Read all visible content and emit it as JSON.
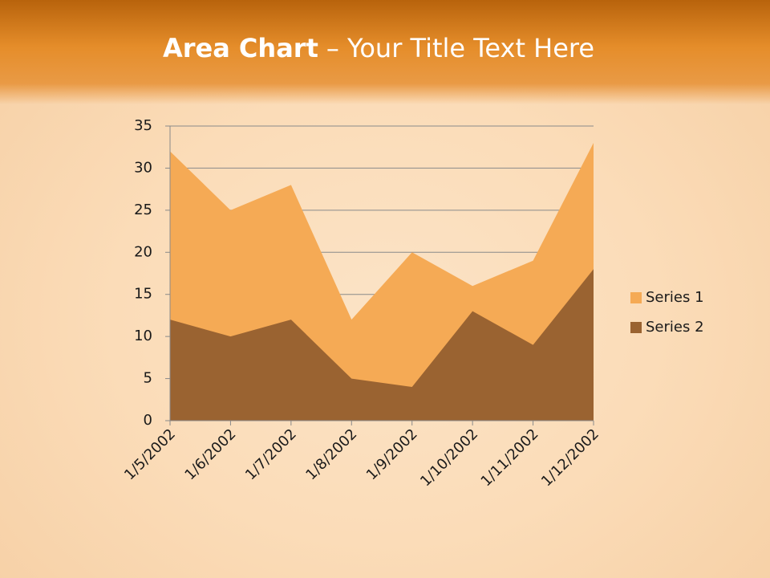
{
  "chart_data": {
    "type": "area",
    "title_bold": "Area Chart",
    "title": "– Your Title Text Here",
    "categories": [
      "1/5/2002",
      "1/6/2002",
      "1/7/2002",
      "1/8/2002",
      "1/9/2002",
      "1/10/2002",
      "1/11/2002",
      "1/12/2002"
    ],
    "series": [
      {
        "name": "Series 1",
        "color": "#f5aa55",
        "values": [
          32,
          25,
          28,
          12,
          20,
          16,
          19,
          33
        ]
      },
      {
        "name": "Series 2",
        "color": "#9a6331",
        "values": [
          12,
          10,
          12,
          5,
          4,
          13,
          9,
          18
        ]
      }
    ],
    "ylim": [
      0,
      35
    ],
    "yticks": [
      0,
      5,
      10,
      15,
      20,
      25,
      30,
      35
    ],
    "grid": true,
    "legend": "right"
  }
}
